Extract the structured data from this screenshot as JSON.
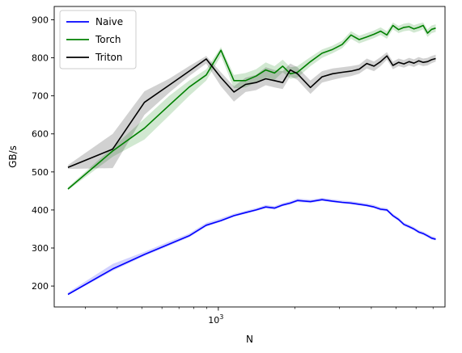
{
  "chart_data": {
    "type": "line",
    "title": "",
    "xlabel": "N",
    "ylabel": "GB/s",
    "xscale": "log",
    "xlim": [
      226,
      7800
    ],
    "ylim": [
      145,
      935
    ],
    "x_ticks": [
      {
        "value": 1000,
        "base": "10",
        "exp": "3"
      }
    ],
    "y_ticks": [
      200,
      300,
      400,
      500,
      600,
      700,
      800,
      900
    ],
    "grid": false,
    "legend_position": "top-left",
    "x": [
      256,
      384,
      512,
      640,
      768,
      896,
      1024,
      1152,
      1280,
      1408,
      1536,
      1664,
      1792,
      1920,
      2048,
      2304,
      2560,
      2816,
      3072,
      3328,
      3584,
      3840,
      4096,
      4352,
      4608,
      4864,
      5120,
      5376,
      5632,
      5888,
      6144,
      6400,
      6656,
      6912,
      7168
    ],
    "series": [
      {
        "name": "Naive",
        "color": "#0000ff",
        "values": [
          178,
          245,
          283,
          310,
          332,
          360,
          372,
          385,
          393,
          400,
          408,
          405,
          413,
          418,
          425,
          422,
          427,
          423,
          420,
          418,
          415,
          412,
          408,
          402,
          400,
          385,
          375,
          362,
          356,
          350,
          342,
          338,
          332,
          326,
          323
        ],
        "lower": [
          176,
          240,
          279,
          306,
          328,
          356,
          369,
          382,
          390,
          397,
          404,
          401,
          410,
          414,
          421,
          418,
          424,
          420,
          417,
          415,
          412,
          409,
          405,
          398,
          396,
          381,
          371,
          358,
          352,
          346,
          338,
          334,
          328,
          322,
          320
        ],
        "upper": [
          183,
          258,
          290,
          317,
          338,
          366,
          378,
          390,
          398,
          405,
          413,
          410,
          418,
          423,
          430,
          427,
          432,
          428,
          425,
          423,
          420,
          417,
          413,
          407,
          405,
          390,
          380,
          367,
          361,
          355,
          347,
          343,
          337,
          331,
          328
        ]
      },
      {
        "name": "Torch",
        "color": "#008000",
        "values": [
          455,
          555,
          615,
          675,
          723,
          755,
          820,
          740,
          740,
          752,
          768,
          760,
          778,
          758,
          762,
          790,
          812,
          822,
          835,
          860,
          848,
          855,
          862,
          870,
          860,
          885,
          874,
          880,
          882,
          876,
          880,
          885,
          865,
          875,
          878
        ],
        "lower": [
          452,
          540,
          585,
          648,
          700,
          740,
          805,
          720,
          722,
          735,
          748,
          742,
          762,
          745,
          748,
          778,
          800,
          812,
          825,
          850,
          838,
          845,
          852,
          860,
          850,
          875,
          865,
          870,
          872,
          866,
          870,
          875,
          855,
          865,
          868
        ],
        "upper": [
          460,
          565,
          640,
          700,
          740,
          770,
          828,
          755,
          760,
          770,
          788,
          778,
          795,
          775,
          778,
          802,
          822,
          832,
          845,
          870,
          858,
          865,
          872,
          880,
          870,
          893,
          884,
          890,
          892,
          886,
          890,
          893,
          875,
          885,
          888
        ]
      },
      {
        "name": "Triton",
        "color": "#000000",
        "values": [
          512,
          560,
          683,
          728,
          765,
          797,
          748,
          710,
          730,
          735,
          745,
          740,
          735,
          768,
          758,
          722,
          750,
          758,
          762,
          765,
          770,
          785,
          778,
          790,
          805,
          780,
          788,
          784,
          790,
          786,
          792,
          788,
          790,
          795,
          798
        ],
        "lower": [
          508,
          510,
          650,
          708,
          752,
          785,
          725,
          685,
          710,
          715,
          728,
          722,
          718,
          752,
          742,
          705,
          735,
          742,
          748,
          752,
          758,
          772,
          765,
          778,
          795,
          770,
          778,
          774,
          780,
          776,
          782,
          778,
          780,
          786,
          790
        ],
        "upper": [
          518,
          600,
          712,
          745,
          778,
          805,
          762,
          725,
          748,
          755,
          775,
          768,
          765,
          785,
          775,
          740,
          765,
          772,
          775,
          778,
          782,
          798,
          790,
          802,
          815,
          790,
          798,
          794,
          800,
          796,
          802,
          798,
          800,
          805,
          808
        ]
      }
    ]
  }
}
